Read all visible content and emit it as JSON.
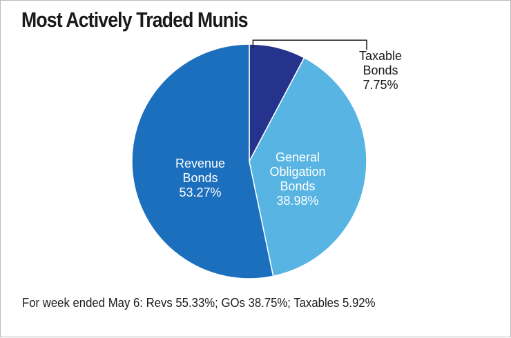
{
  "chart_data": {
    "type": "pie",
    "title": "Most Actively Traded Munis",
    "slices": [
      {
        "label_lines": [
          "Taxable",
          "Bonds"
        ],
        "value_text": "7.75%",
        "value": 7.75,
        "color": "#26338c"
      },
      {
        "label_lines": [
          "General",
          "Obligation",
          "Bonds"
        ],
        "value_text": "38.98%",
        "value": 38.98,
        "color": "#58b4e2"
      },
      {
        "label_lines": [
          "Revenue",
          "Bonds"
        ],
        "value_text": "53.27%",
        "value": 53.27,
        "color": "#1c6fbd"
      }
    ],
    "footnote": "For week ended May 6: Revs 55.33%; GOs 38.75%; Taxables 5.92%"
  }
}
